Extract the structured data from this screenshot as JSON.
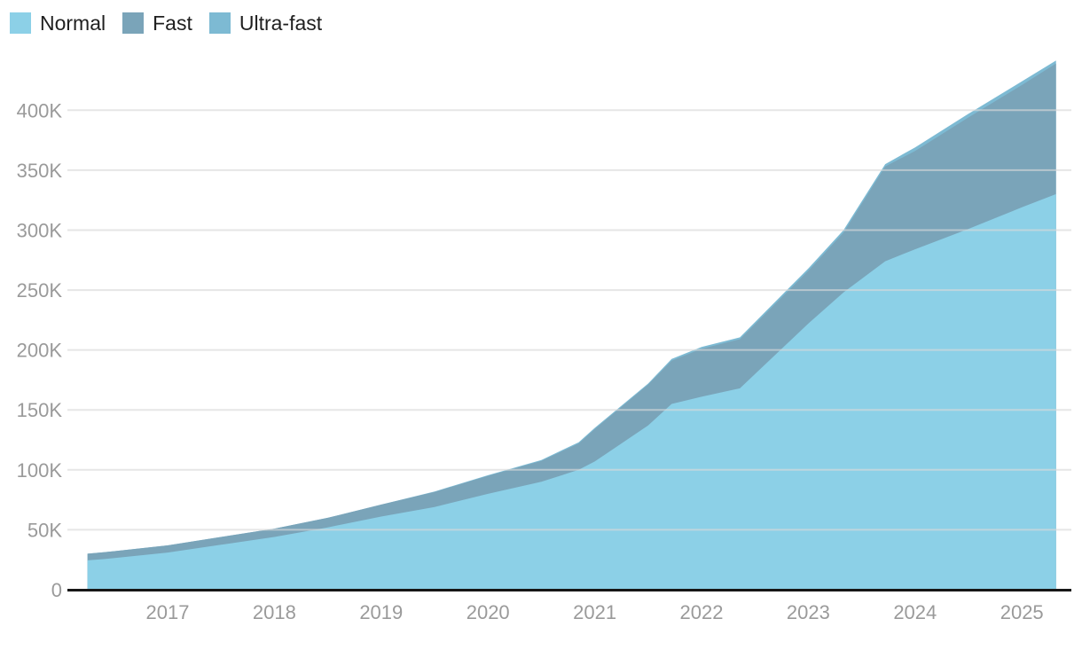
{
  "legend": {
    "position": "top-left",
    "items": [
      {
        "label": "Normal"
      },
      {
        "label": "Fast"
      },
      {
        "label": "Ultra-fast"
      }
    ]
  },
  "chart_data": {
    "type": "area",
    "stacked": true,
    "title": "",
    "xlabel": "",
    "ylabel": "",
    "values_unit": "thousands",
    "x": [
      2016.25,
      2016.4,
      2017,
      2017.5,
      2018,
      2018.5,
      2019,
      2019.5,
      2020,
      2020.5,
      2020.85,
      2021,
      2021.5,
      2021.72,
      2022,
      2022.36,
      2023,
      2023.33,
      2023.72,
      2024,
      2024.5,
      2025,
      2025.32
    ],
    "series": [
      {
        "name": "Normal",
        "color": "#8CD0E7",
        "values": [
          24.5,
          25.5,
          31,
          37.5,
          44,
          52,
          61,
          69,
          80,
          90,
          100,
          107,
          137,
          155,
          161,
          168,
          222,
          248,
          274,
          284,
          301,
          319,
          330
        ]
      },
      {
        "name": "Fast",
        "color": "#7AA4B9",
        "values": [
          5.5,
          5.7,
          6,
          6.5,
          7,
          8,
          10,
          12.5,
          15,
          17.5,
          22,
          27,
          34,
          36,
          40,
          41,
          44,
          50,
          79,
          82,
          93,
          102,
          109
        ]
      },
      {
        "name": "Ultra-fast",
        "color": "#7DBAD3",
        "values": [
          0,
          0,
          0,
          0,
          0,
          0,
          0,
          0.5,
          0.5,
          0.7,
          1,
          1,
          1,
          1.5,
          1.5,
          1.5,
          2,
          2,
          2,
          3,
          3,
          3,
          2.5
        ]
      }
    ],
    "x_ticks": [
      "2017",
      "2018",
      "2019",
      "2020",
      "2021",
      "2022",
      "2023",
      "2024",
      "2025"
    ],
    "y_ticks": [
      "0",
      "50K",
      "100K",
      "150K",
      "200K",
      "250K",
      "300K",
      "350K",
      "400K"
    ],
    "y_tick_values_thousands": [
      0,
      50,
      100,
      150,
      200,
      250,
      300,
      350,
      400
    ],
    "x_domain": [
      2016.25,
      2025.32
    ],
    "ylim_thousands": [
      0,
      445
    ],
    "grid": "horizontal",
    "legend_position": "top-left",
    "background": "#ffffff",
    "axis_label_color": "#9a9a9a",
    "grid_color": "#d9d9d9",
    "axis_line_color": "#161616"
  }
}
